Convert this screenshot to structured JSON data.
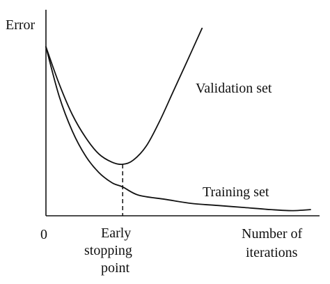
{
  "chart_data": {
    "type": "line",
    "title": "",
    "ylabel": "Error",
    "xlabel_lines": [
      "Number of",
      "iterations"
    ],
    "x_origin_label": "0",
    "early_stop_label_lines": [
      "Early",
      "stopping",
      "point"
    ],
    "xlim": [
      0,
      10
    ],
    "ylim": [
      0,
      10
    ],
    "grid": false,
    "legend": "none",
    "early_stop_x": 2.9,
    "series": [
      {
        "name": "Validation set",
        "label_position": "upper-right",
        "x": [
          0,
          0.5,
          1.0,
          1.5,
          2.0,
          2.5,
          2.9,
          3.3,
          3.8,
          4.3,
          4.8,
          5.3,
          5.9
        ],
        "y": [
          8.2,
          6.4,
          4.9,
          3.8,
          3.0,
          2.6,
          2.5,
          2.7,
          3.4,
          4.6,
          6.0,
          7.4,
          9.1
        ]
      },
      {
        "name": "Training set",
        "label_position": "lower-right",
        "x": [
          0,
          0.5,
          1.0,
          1.5,
          2.0,
          2.5,
          2.9,
          3.5,
          4.5,
          5.5,
          6.5,
          7.5,
          8.5,
          9.3,
          10.0
        ],
        "y": [
          8.2,
          5.8,
          4.1,
          2.9,
          2.1,
          1.6,
          1.4,
          1.0,
          0.8,
          0.6,
          0.5,
          0.4,
          0.3,
          0.25,
          0.3
        ]
      }
    ]
  }
}
